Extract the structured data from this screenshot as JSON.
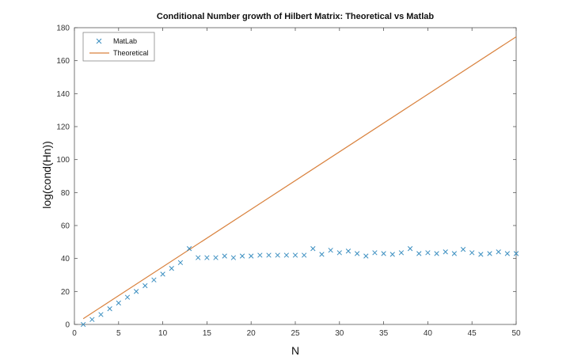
{
  "chart_data": {
    "type": "scatter",
    "title": "Conditional Number growth of Hilbert Matrix: Theoretical vs Matlab",
    "xlabel": "N",
    "ylabel": "log(cond(Hn))",
    "xlim": [
      0,
      50
    ],
    "ylim": [
      0,
      180
    ],
    "xticks": [
      0,
      5,
      10,
      15,
      20,
      25,
      30,
      35,
      40,
      45,
      50
    ],
    "yticks": [
      0,
      20,
      40,
      60,
      80,
      100,
      120,
      140,
      160,
      180
    ],
    "grid": false,
    "legend": "top-left",
    "series": [
      {
        "name": "MatLab",
        "kind": "markers",
        "marker": "x",
        "color": "#3a8ec0",
        "x": [
          1,
          2,
          3,
          4,
          5,
          6,
          7,
          8,
          9,
          10,
          11,
          12,
          13,
          14,
          15,
          16,
          17,
          18,
          19,
          20,
          21,
          22,
          23,
          24,
          25,
          26,
          27,
          28,
          29,
          30,
          31,
          32,
          33,
          34,
          35,
          36,
          37,
          38,
          39,
          40,
          41,
          42,
          43,
          44,
          45,
          46,
          47,
          48,
          49,
          50
        ],
        "y": [
          0,
          3,
          6,
          9.5,
          13,
          16.5,
          20,
          23.5,
          27,
          30.5,
          34,
          37.5,
          46,
          40.5,
          40.5,
          40.5,
          41.5,
          40.5,
          41.5,
          41.5,
          42,
          42,
          42,
          42,
          42,
          42,
          46,
          42.5,
          45,
          43.5,
          44.5,
          43,
          41.5,
          43.5,
          43,
          42.5,
          43.5,
          46,
          43,
          43.5,
          43,
          44,
          43,
          45.5,
          43.5,
          42.5,
          43,
          44,
          43,
          43
        ]
      },
      {
        "name": "Theoretical",
        "kind": "line",
        "color": "#d9823e",
        "x": [
          1,
          50
        ],
        "y": [
          3.5,
          174.5
        ]
      }
    ]
  }
}
